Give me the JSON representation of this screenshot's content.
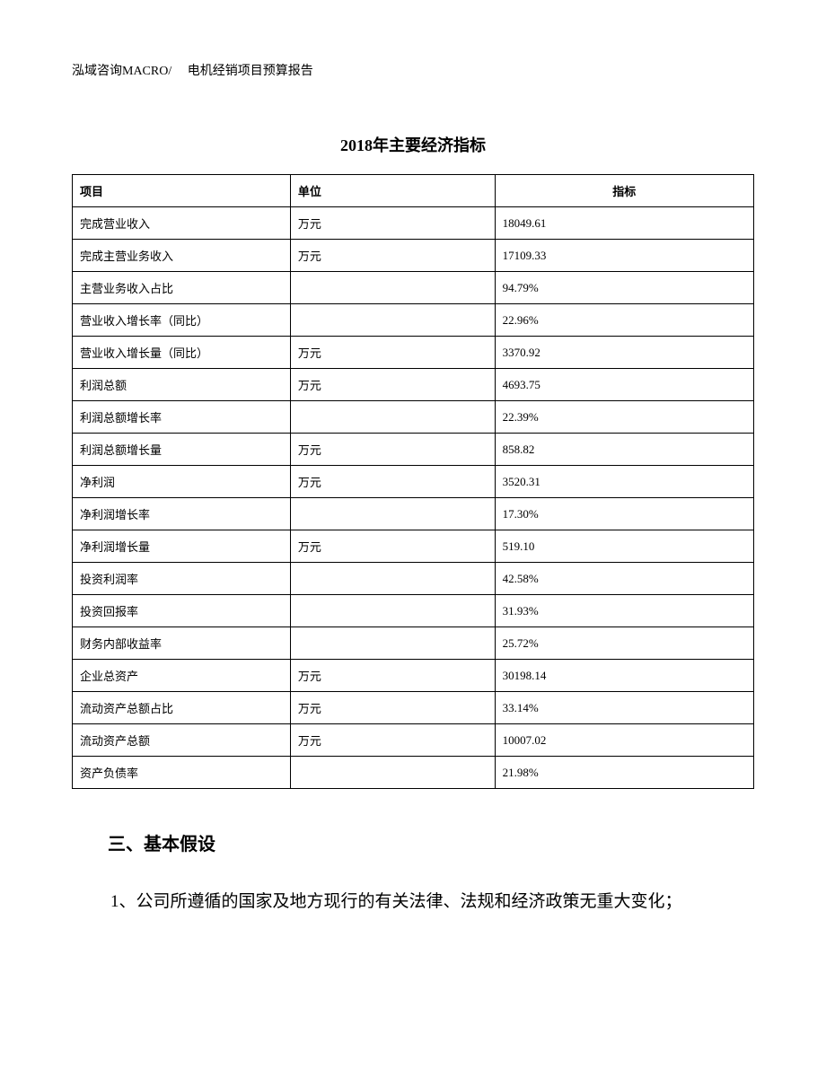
{
  "header": "泓域咨询MACRO/　 电机经销项目预算报告",
  "title": "2018年主要经济指标",
  "table": {
    "columns": [
      "项目",
      "单位",
      "指标"
    ],
    "rows": [
      [
        "完成营业收入",
        "万元",
        "18049.61"
      ],
      [
        "完成主营业务收入",
        "万元",
        "17109.33"
      ],
      [
        "主营业务收入占比",
        "",
        "94.79%"
      ],
      [
        "营业收入增长率（同比）",
        "",
        "22.96%"
      ],
      [
        "营业收入增长量（同比）",
        "万元",
        "3370.92"
      ],
      [
        "利润总额",
        "万元",
        "4693.75"
      ],
      [
        "利润总额增长率",
        "",
        "22.39%"
      ],
      [
        "利润总额增长量",
        "万元",
        "858.82"
      ],
      [
        "净利润",
        "万元",
        "3520.31"
      ],
      [
        "净利润增长率",
        "",
        "17.30%"
      ],
      [
        "净利润增长量",
        "万元",
        "519.10"
      ],
      [
        "投资利润率",
        "",
        "42.58%"
      ],
      [
        "投资回报率",
        "",
        "31.93%"
      ],
      [
        "财务内部收益率",
        "",
        "25.72%"
      ],
      [
        "企业总资产",
        "万元",
        "30198.14"
      ],
      [
        "流动资产总额占比",
        "万元",
        "33.14%"
      ],
      [
        "流动资产总额",
        "万元",
        "10007.02"
      ],
      [
        "资产负债率",
        "",
        "21.98%"
      ]
    ]
  },
  "section_heading": "三、基本假设",
  "paragraph": "1、公司所遵循的国家及地方现行的有关法律、法规和经济政策无重大变化；"
}
